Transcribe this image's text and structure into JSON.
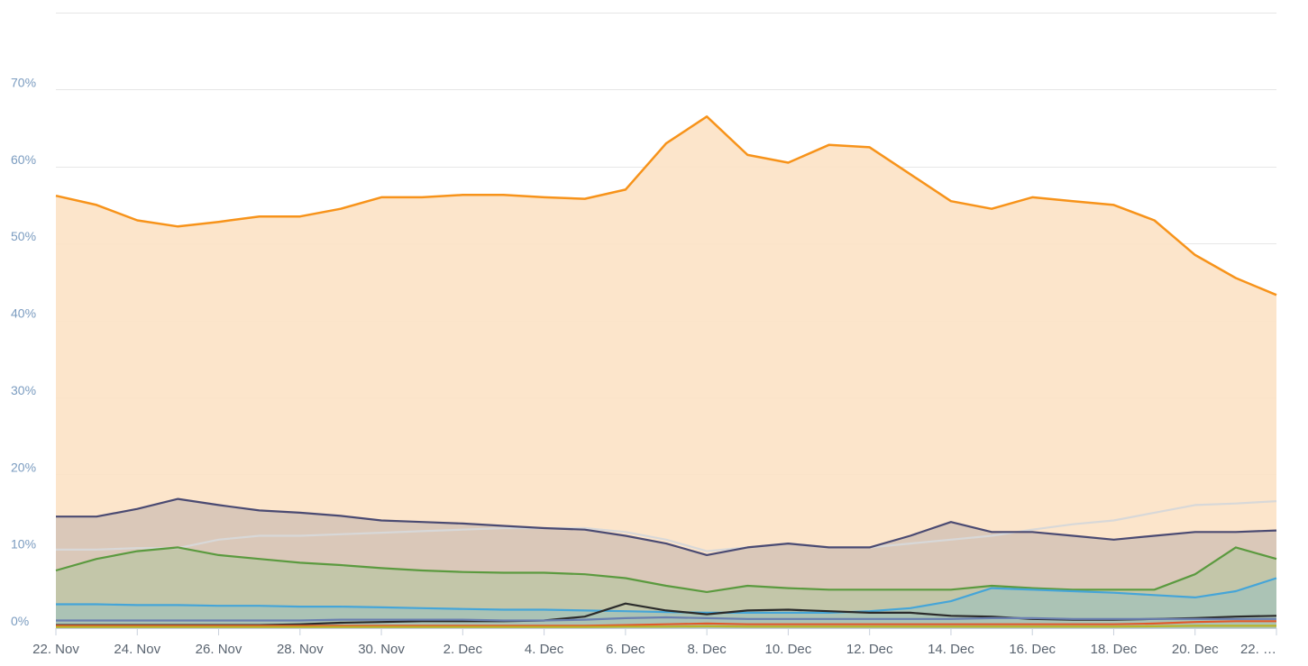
{
  "chart_data": {
    "type": "area",
    "title": "",
    "xlabel": "",
    "ylabel": "",
    "ylim": [
      0,
      80
    ],
    "yticks": [
      0,
      10,
      20,
      30,
      40,
      50,
      60,
      70
    ],
    "ytick_labels": [
      "0%",
      "10%",
      "20%",
      "30%",
      "40%",
      "50%",
      "60%",
      "70%"
    ],
    "xlim": [
      "22. Nov",
      "22. Dec"
    ],
    "xtick_labels": [
      "22. Nov",
      "24. Nov",
      "26. Nov",
      "28. Nov",
      "30. Nov",
      "2. Dec",
      "4. Dec",
      "6. Dec",
      "8. Dec",
      "10. Dec",
      "12. Dec",
      "14. Dec",
      "16. Dec",
      "18. Dec",
      "20. Dec",
      "22. …"
    ],
    "x": [
      "22. Nov",
      "23. Nov",
      "24. Nov",
      "25. Nov",
      "26. Nov",
      "27. Nov",
      "28. Nov",
      "29. Nov",
      "30. Nov",
      "1. Dec",
      "2. Dec",
      "3. Dec",
      "4. Dec",
      "5. Dec",
      "6. Dec",
      "7. Dec",
      "8. Dec",
      "9. Dec",
      "10. Dec",
      "11. Dec",
      "12. Dec",
      "13. Dec",
      "14. Dec",
      "15. Dec",
      "16. Dec",
      "17. Dec",
      "18. Dec",
      "19. Dec",
      "20. Dec",
      "21. Dec",
      "22. Dec"
    ],
    "grid": true,
    "legend": "none",
    "series": [
      {
        "color": "#f7931a",
        "fill": "#fce3c7",
        "values": [
          56.2,
          55,
          53,
          52.2,
          52.8,
          53.5,
          53.5,
          54.5,
          56,
          56,
          56.3,
          56.3,
          56,
          55.8,
          57,
          63,
          66.5,
          61.5,
          60.5,
          62.8,
          62.5,
          59,
          55.5,
          54.5,
          56,
          55.5,
          55,
          53,
          48.5,
          45.5,
          43.3
        ]
      },
      {
        "color": "#d8d8d8",
        "fill": "none",
        "values": [
          10.2,
          10.2,
          10.4,
          10.4,
          11.5,
          12,
          12,
          12.2,
          12.4,
          12.6,
          12.8,
          13,
          13,
          13,
          12.5,
          11.5,
          10,
          10.5,
          11,
          10.5,
          10.5,
          11,
          11.5,
          12,
          12.8,
          13.5,
          14,
          15,
          16,
          16.2,
          16.5
        ]
      },
      {
        "color": "#4a4a72",
        "fill": "#d7c6b7",
        "values": [
          14.5,
          14.5,
          15.5,
          16.8,
          16,
          15.3,
          15,
          14.6,
          14,
          13.8,
          13.6,
          13.3,
          13,
          12.8,
          12,
          11,
          9.5,
          10.5,
          11,
          10.5,
          10.5,
          12,
          13.8,
          12.5,
          12.5,
          12,
          11.5,
          12,
          12.5,
          12.5,
          12.7
        ]
      },
      {
        "color": "#5b9a3f",
        "fill": "#c1c5a7",
        "values": [
          7.5,
          9,
          10,
          10.5,
          9.5,
          9,
          8.5,
          8.2,
          7.8,
          7.5,
          7.3,
          7.2,
          7.2,
          7,
          6.5,
          5.5,
          4.7,
          5.5,
          5.2,
          5,
          5,
          5,
          5,
          5.5,
          5.2,
          5,
          5,
          5,
          7,
          10.5,
          9
        ]
      },
      {
        "color": "#45a5d8",
        "fill": "#a9c2b6",
        "values": [
          3.1,
          3.1,
          3.0,
          3.0,
          2.9,
          2.9,
          2.8,
          2.8,
          2.7,
          2.6,
          2.5,
          2.4,
          2.4,
          2.3,
          2.2,
          2.1,
          2.0,
          2.0,
          2.0,
          2.0,
          2.2,
          2.6,
          3.5,
          5.2,
          5.0,
          4.8,
          4.6,
          4.3,
          4.0,
          4.8,
          6.5
        ]
      },
      {
        "color": "#2b2b2b",
        "fill": "none",
        "values": [
          0.4,
          0.4,
          0.4,
          0.4,
          0.4,
          0.4,
          0.5,
          0.7,
          0.8,
          0.9,
          0.9,
          0.9,
          1.0,
          1.5,
          3.2,
          2.3,
          1.8,
          2.3,
          2.4,
          2.2,
          2.0,
          2.0,
          1.6,
          1.5,
          1.2,
          1.1,
          1.1,
          1.2,
          1.3,
          1.5,
          1.6
        ]
      },
      {
        "color": "#6a7fb0",
        "fill": "none",
        "values": [
          1.0,
          1.0,
          1.0,
          1.0,
          1.0,
          1.0,
          1.0,
          1.1,
          1.1,
          1.1,
          1.1,
          1.0,
          1.0,
          1.1,
          1.3,
          1.4,
          1.3,
          1.2,
          1.2,
          1.2,
          1.2,
          1.2,
          1.2,
          1.3,
          1.3,
          1.2,
          1.2,
          1.2,
          1.2,
          1.2,
          1.2
        ]
      },
      {
        "color": "#e05a2b",
        "fill": "none",
        "values": [
          0.3,
          0.3,
          0.3,
          0.3,
          0.3,
          0.3,
          0.3,
          0.3,
          0.3,
          0.3,
          0.3,
          0.3,
          0.3,
          0.3,
          0.4,
          0.5,
          0.6,
          0.5,
          0.5,
          0.5,
          0.5,
          0.5,
          0.5,
          0.5,
          0.5,
          0.5,
          0.5,
          0.6,
          0.8,
          0.9,
          0.9
        ]
      },
      {
        "color": "#b9b52a",
        "fill": "none",
        "values": [
          0.15,
          0.15,
          0.15,
          0.15,
          0.15,
          0.15,
          0.15,
          0.15,
          0.15,
          0.15,
          0.15,
          0.15,
          0.15,
          0.15,
          0.2,
          0.2,
          0.25,
          0.2,
          0.2,
          0.2,
          0.2,
          0.2,
          0.2,
          0.2,
          0.2,
          0.2,
          0.2,
          0.25,
          0.3,
          0.3,
          0.3
        ]
      }
    ]
  }
}
